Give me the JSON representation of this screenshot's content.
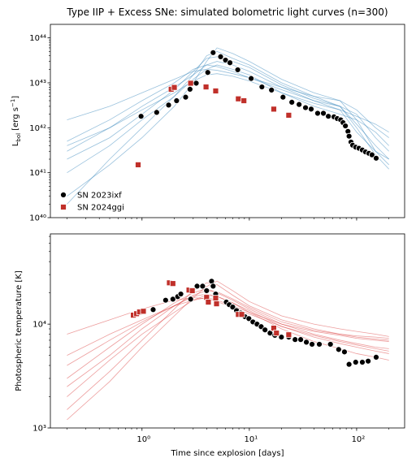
{
  "chart_data": [
    {
      "type": "line",
      "title": "Type IIP + Excess SNe: simulated bolometric light curves (n=300)",
      "ylabel": {
        "base": "L",
        "sub": "bol",
        "unit": " [erg s",
        "exp": "−1",
        "close": "]"
      },
      "log_x": true,
      "log_y": true,
      "xlim": [
        0.14,
        280
      ],
      "ylim": [
        1e+40,
        2e+44
      ],
      "xticks": [
        1,
        10,
        100
      ],
      "yticks": [
        {
          "value": 1e+40,
          "label": "10⁴⁰"
        },
        {
          "value": 1e+41,
          "label": "10⁴¹"
        },
        {
          "value": 1e+42,
          "label": "10⁴²"
        },
        {
          "value": 1e+43,
          "label": "10⁴³"
        },
        {
          "value": 1e+44,
          "label": "10⁴⁴"
        }
      ],
      "legend": "lower left",
      "simulated_color": "#1f77b4",
      "simulated_x": [
        0.2,
        0.5,
        1,
        2,
        3,
        4,
        5,
        7,
        10,
        20,
        40,
        70,
        100,
        150,
        200
      ],
      "simulated": [
        {
          "values": [
            3e+41,
            1e+42,
            3e+42,
            8e+42,
            1.5e+43,
            2.5e+43,
            3e+43,
            2.5e+43,
            1.8e+43,
            8e+42,
            4e+42,
            2.5e+42,
            8e+41,
            3e+41,
            2e+41
          ]
        },
        {
          "values": [
            2e+40,
            2e+41,
            1e+42,
            5e+42,
            1.5e+43,
            4e+43,
            5e+43,
            3.5e+43,
            2.5e+43,
            1e+43,
            5e+42,
            3e+42,
            1.2e+42,
            4e+41,
            2e+41
          ]
        },
        {
          "values": [
            5e+41,
            1.5e+42,
            4e+42,
            1e+43,
            2e+43,
            2.5e+43,
            2.3e+43,
            1.8e+43,
            1.3e+43,
            7e+42,
            4e+42,
            3e+42,
            2e+42,
            6e+41,
            3e+41
          ]
        },
        {
          "values": [
            1e+41,
            4e+41,
            1.5e+42,
            5e+42,
            1.2e+43,
            2e+43,
            2.5e+43,
            2e+43,
            1.5e+43,
            6e+42,
            3e+42,
            2e+42,
            1.5e+42,
            8e+41,
            4e+41
          ]
        },
        {
          "values": [
            1.5e+42,
            3e+42,
            6e+42,
            1.2e+43,
            1.8e+43,
            2e+43,
            1.9e+43,
            1.6e+43,
            1.3e+43,
            8e+42,
            5e+42,
            4e+42,
            2.5e+42,
            1e+42,
            6e+41
          ]
        },
        {
          "values": [
            3e+40,
            1.5e+41,
            6e+41,
            3e+42,
            1e+43,
            3e+43,
            6e+43,
            4.5e+43,
            3e+43,
            1.2e+43,
            6e+42,
            4e+42,
            1.5e+42,
            3e+41,
            1.5e+41
          ]
        },
        {
          "values": [
            4e+41,
            1e+42,
            2.5e+42,
            6e+42,
            1.1e+43,
            1.5e+43,
            1.6e+43,
            1.4e+43,
            1.1e+43,
            6e+42,
            3.5e+42,
            2.5e+42,
            1.8e+42,
            1.2e+42,
            8e+41
          ]
        },
        {
          "values": [
            2e+41,
            6e+41,
            2e+42,
            7e+42,
            1.8e+43,
            3.5e+43,
            3.8e+43,
            3e+43,
            2.2e+43,
            9e+42,
            4.5e+42,
            3e+42,
            1e+42,
            2.5e+41,
            1.2e+41
          ]
        }
      ],
      "series": [
        {
          "name": "SN 2023ixf",
          "color": "#000000",
          "marker": "circle",
          "x": [
            0.98,
            1.37,
            1.77,
            2.1,
            2.55,
            2.8,
            3.2,
            4.1,
            4.6,
            5.4,
            6.0,
            6.6,
            7.8,
            10.4,
            13.1,
            16.1,
            20.6,
            24.9,
            29.1,
            33.4,
            37.7,
            43.3,
            49,
            54.5,
            61.5,
            66,
            71,
            74.7,
            78.6,
            83,
            85,
            88.6,
            91.8,
            98,
            105,
            113,
            121,
            130,
            139,
            152
          ],
          "values": [
            1.8e+42,
            2.2e+42,
            3.2e+42,
            4e+42,
            4.8e+42,
            7.2e+42,
            9.8e+42,
            1.7e+43,
            4.7e+43,
            3.8e+43,
            3.2e+43,
            2.8e+43,
            1.95e+43,
            1.25e+43,
            8.1e+42,
            6.9e+42,
            4.8e+42,
            3.7e+42,
            3.3e+42,
            2.8e+42,
            2.6e+42,
            2.1e+42,
            2.1e+42,
            1.8e+42,
            1.75e+42,
            1.6e+42,
            1.5e+42,
            1.3e+42,
            1.1e+42,
            8.3e+41,
            6.5e+41,
            4.8e+41,
            4.1e+41,
            3.7e+41,
            3.5e+41,
            3.2e+41,
            2.9e+41,
            2.7e+41,
            2.5e+41,
            2.1e+41
          ]
        },
        {
          "name": "SN 2024ggi",
          "color": "#c0302a",
          "marker": "square",
          "x": [
            0.92,
            1.87,
            2.0,
            2.84,
            3.95,
            4.86,
            7.9,
            8.9,
            16.9,
            23.3
          ],
          "values": [
            1.5e+41,
            7.2e+42,
            7.9e+42,
            9.8e+42,
            8.1e+42,
            6.6e+42,
            4.4e+42,
            4e+42,
            2.6e+42,
            1.9e+42
          ]
        }
      ]
    },
    {
      "type": "line",
      "ylabel": "Photospheric temperature [K]",
      "xlabel": "Time since explosion [days]",
      "log_x": true,
      "log_y": true,
      "xlim": [
        0.14,
        280
      ],
      "ylim": [
        1000,
        74000
      ],
      "xticks": [
        {
          "value": 1,
          "label": "10⁰"
        },
        {
          "value": 10,
          "label": "10¹"
        },
        {
          "value": 100,
          "label": "10²"
        }
      ],
      "yticks": [
        {
          "value": 1000,
          "label": "10³"
        },
        {
          "value": 10000,
          "label": "10⁴"
        }
      ],
      "simulated_color": "#d62728",
      "simulated_x": [
        0.2,
        0.5,
        1,
        2,
        3,
        4,
        5,
        7,
        10,
        20,
        40,
        70,
        100,
        150,
        200
      ],
      "simulated": [
        {
          "values": [
            3000,
            6000,
            10000,
            16000,
            20000,
            22000,
            20000,
            17000,
            14000,
            10000,
            8000,
            7000,
            6500,
            6000,
            5800
          ]
        },
        {
          "values": [
            1500,
            3500,
            7000,
            14000,
            21000,
            25000,
            24000,
            19000,
            15000,
            11000,
            9000,
            8000,
            7500,
            7200,
            7000
          ]
        },
        {
          "values": [
            5000,
            8000,
            11000,
            15000,
            17000,
            18000,
            17000,
            15000,
            13000,
            10000,
            8500,
            7800,
            7300,
            7000,
            6800
          ]
        },
        {
          "values": [
            2000,
            4500,
            8000,
            13000,
            17000,
            19000,
            18500,
            16000,
            13500,
            9500,
            7500,
            6500,
            6000,
            5500,
            5200
          ]
        },
        {
          "values": [
            8000,
            11000,
            14000,
            17000,
            18000,
            17500,
            16500,
            14500,
            12500,
            9500,
            7800,
            6800,
            6300,
            5800,
            5500
          ]
        },
        {
          "values": [
            1200,
            2800,
            6000,
            12000,
            18000,
            23000,
            26000,
            21000,
            16500,
            12000,
            10000,
            9000,
            8500,
            8000,
            7600
          ]
        },
        {
          "values": [
            4000,
            7000,
            10500,
            15000,
            18500,
            19500,
            18500,
            16000,
            13000,
            9000,
            6800,
            5800,
            5200,
            4800,
            4500
          ]
        },
        {
          "values": [
            2500,
            5000,
            9000,
            15000,
            19000,
            21000,
            20500,
            17500,
            14500,
            10500,
            8700,
            8000,
            7700,
            7500,
            7300
          ]
        }
      ],
      "series": [
        {
          "name": "SN 2023ixf",
          "color": "#000000",
          "marker": "circle",
          "x": [
            1.27,
            1.66,
            1.94,
            2.15,
            2.3,
            2.84,
            3.26,
            3.67,
            4.0,
            4.45,
            4.6,
            4.86,
            6.1,
            6.5,
            7.0,
            7.6,
            8.3,
            9.1,
            9.9,
            10.8,
            11.8,
            12.9,
            14.0,
            15.6,
            17.3,
            19.9,
            23.3,
            26.7,
            30.1,
            34.0,
            38.4,
            44.9,
            57,
            68,
            77,
            85,
            98,
            113,
            128,
            152
          ],
          "values": [
            13800,
            17000,
            17400,
            18400,
            19500,
            17400,
            23200,
            23200,
            21000,
            25900,
            23200,
            19500,
            16300,
            15400,
            14600,
            13500,
            12800,
            11800,
            11300,
            10500,
            10000,
            9450,
            8800,
            8200,
            7800,
            7500,
            7500,
            7100,
            7100,
            6700,
            6400,
            6400,
            6400,
            5700,
            5400,
            4100,
            4300,
            4300,
            4400,
            4800
          ]
        },
        {
          "name": "SN 2024ggi",
          "color": "#c0302a",
          "marker": "square",
          "x": [
            0.83,
            0.89,
            0.95,
            1.03,
            1.8,
            1.94,
            2.74,
            2.94,
            4.0,
            4.15,
            4.86,
            4.95,
            7.9,
            8.5,
            16.9,
            17.9,
            23.3
          ],
          "values": [
            12200,
            12600,
            13100,
            13300,
            25000,
            24600,
            21300,
            21000,
            18100,
            16300,
            17800,
            15700,
            12400,
            12400,
            9150,
            8200,
            7900
          ]
        }
      ]
    }
  ]
}
